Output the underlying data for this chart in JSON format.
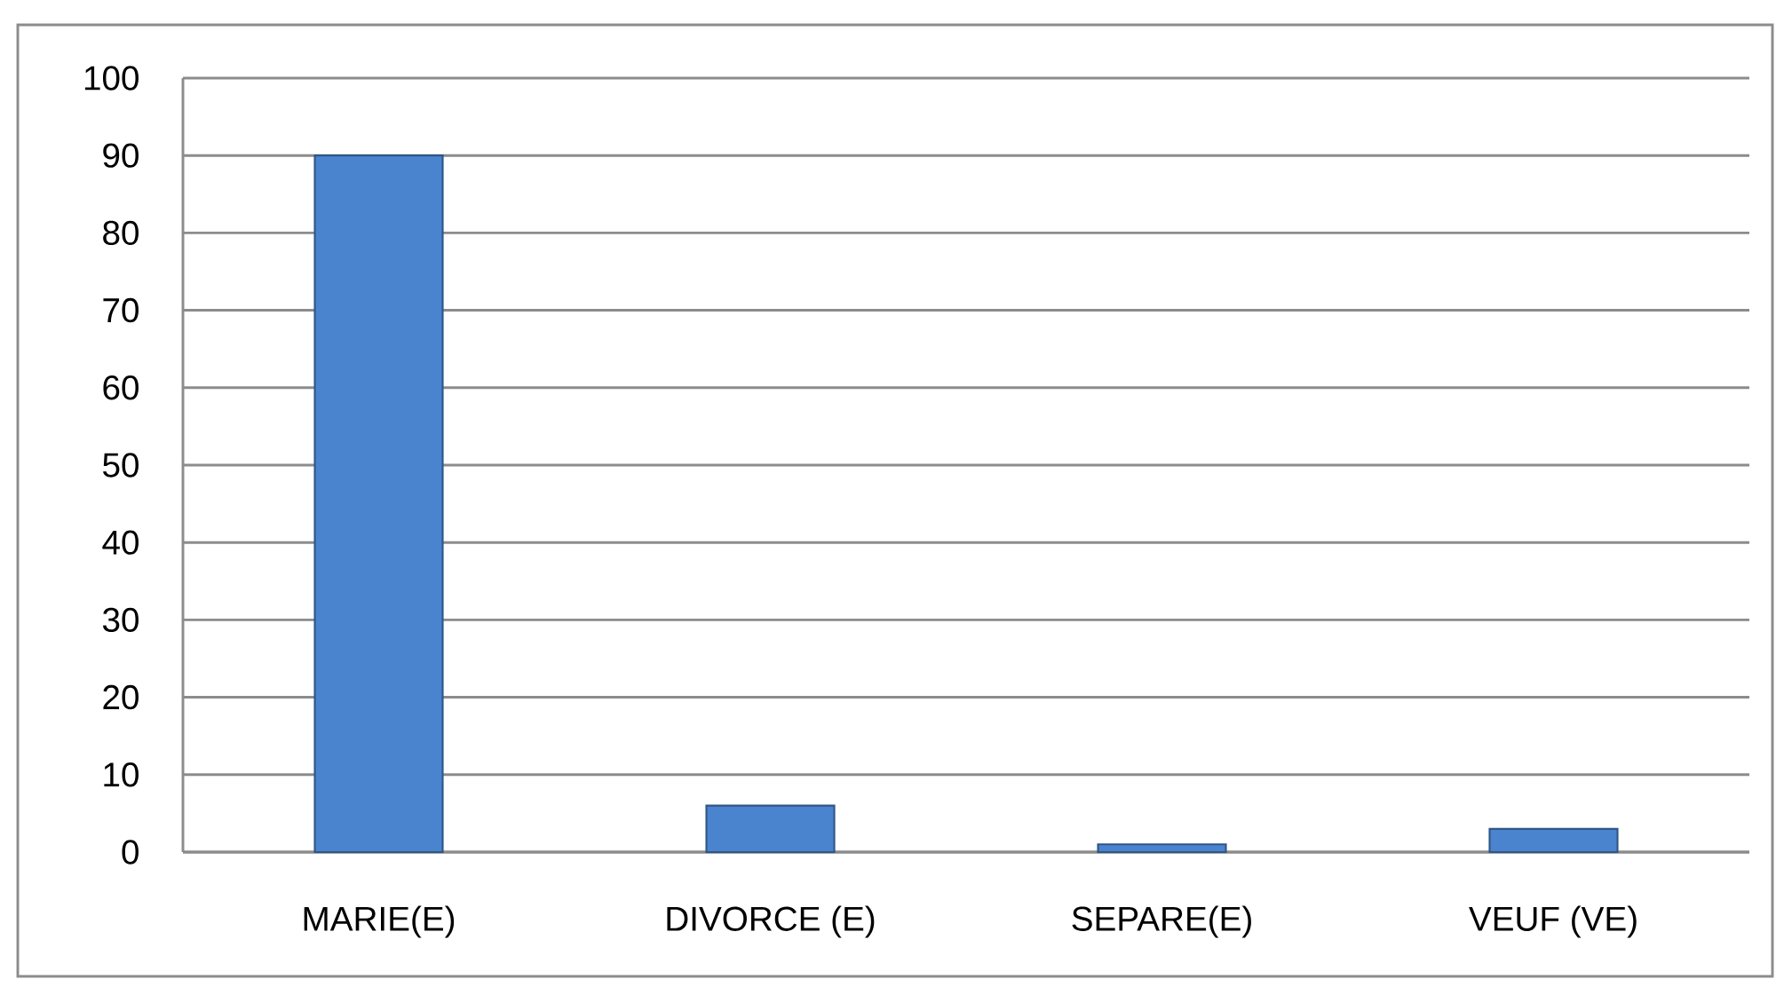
{
  "chart_data": {
    "type": "bar",
    "categories": [
      "MARIE(E)",
      "DIVORCE (E)",
      "SEPARE(E)",
      "VEUF (VE)"
    ],
    "values": [
      90,
      6,
      1,
      3
    ],
    "color": "#4a84cf",
    "ylim": [
      0,
      100
    ],
    "yticks": [
      0,
      10,
      20,
      30,
      40,
      50,
      60,
      70,
      80,
      90,
      100
    ],
    "grid": "y"
  }
}
